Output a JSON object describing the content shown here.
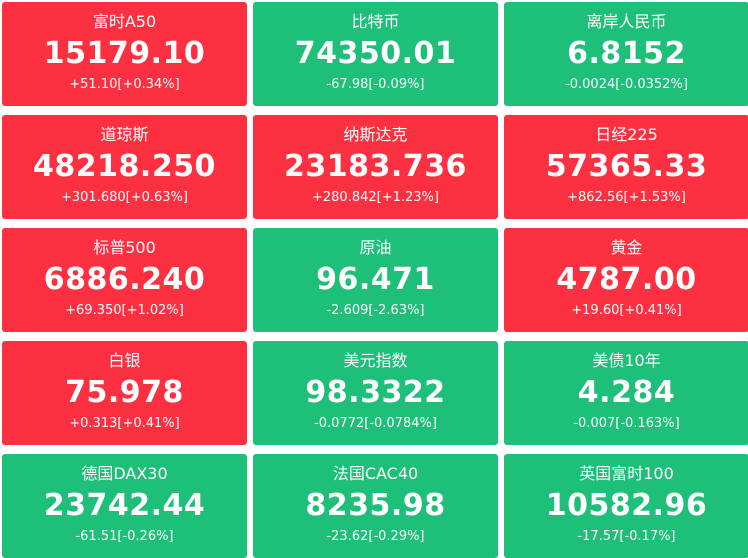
{
  "colors": {
    "up": "#fc3040",
    "down": "#1dbf79",
    "text": "#ffffff"
  },
  "quotes": [
    {
      "name": "富时A50",
      "price": "15179.10",
      "change": "+51.10[+0.34%]",
      "trend": "up"
    },
    {
      "name": "比特币",
      "price": "74350.01",
      "change": "-67.98[-0.09%]",
      "trend": "down"
    },
    {
      "name": "离岸人民币",
      "price": "6.8152",
      "change": "-0.0024[-0.0352%]",
      "trend": "down"
    },
    {
      "name": "道琼斯",
      "price": "48218.250",
      "change": "+301.680[+0.63%]",
      "trend": "up"
    },
    {
      "name": "纳斯达克",
      "price": "23183.736",
      "change": "+280.842[+1.23%]",
      "trend": "up"
    },
    {
      "name": "日经225",
      "price": "57365.33",
      "change": "+862.56[+1.53%]",
      "trend": "up"
    },
    {
      "name": "标普500",
      "price": "6886.240",
      "change": "+69.350[+1.02%]",
      "trend": "up"
    },
    {
      "name": "原油",
      "price": "96.471",
      "change": "-2.609[-2.63%]",
      "trend": "down"
    },
    {
      "name": "黄金",
      "price": "4787.00",
      "change": "+19.60[+0.41%]",
      "trend": "up"
    },
    {
      "name": "白银",
      "price": "75.978",
      "change": "+0.313[+0.41%]",
      "trend": "up"
    },
    {
      "name": "美元指数",
      "price": "98.3322",
      "change": "-0.0772[-0.0784%]",
      "trend": "down"
    },
    {
      "name": "美债10年",
      "price": "4.284",
      "change": "-0.007[-0.163%]",
      "trend": "down"
    },
    {
      "name": "德国DAX30",
      "price": "23742.44",
      "change": "-61.51[-0.26%]",
      "trend": "down"
    },
    {
      "name": "法国CAC40",
      "price": "8235.98",
      "change": "-23.62[-0.29%]",
      "trend": "down"
    },
    {
      "name": "英国富时100",
      "price": "10582.96",
      "change": "-17.57[-0.17%]",
      "trend": "down"
    }
  ]
}
